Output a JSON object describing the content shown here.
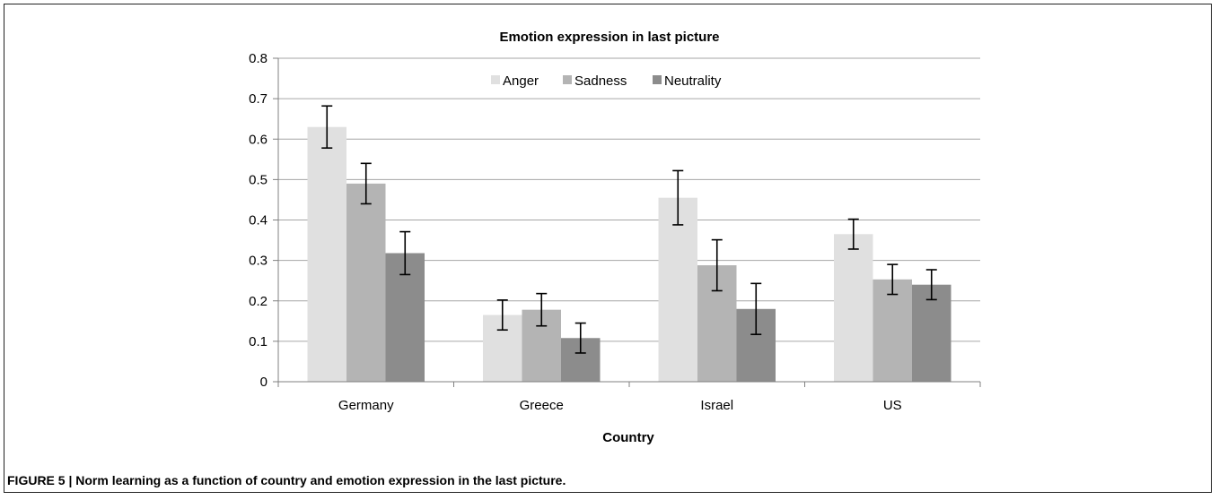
{
  "caption": {
    "label": "FIGURE 5 |",
    "text": "Norm learning as a function of country and emotion expression in the last picture."
  },
  "chart_data": {
    "type": "bar",
    "title": "Emotion expression in last picture",
    "xlabel": "Country",
    "ylabel": "",
    "categories": [
      "Germany",
      "Greece",
      "Israel",
      "US"
    ],
    "series": [
      {
        "name": "Anger",
        "color": "#e0e0e0",
        "values": [
          0.63,
          0.165,
          0.455,
          0.365
        ],
        "errors": [
          0.052,
          0.037,
          0.067,
          0.037
        ]
      },
      {
        "name": "Sadness",
        "color": "#b4b4b4",
        "values": [
          0.49,
          0.178,
          0.288,
          0.253
        ],
        "errors": [
          0.05,
          0.04,
          0.063,
          0.037
        ]
      },
      {
        "name": "Neutrality",
        "color": "#8c8c8c",
        "values": [
          0.318,
          0.108,
          0.18,
          0.24
        ],
        "errors": [
          0.053,
          0.037,
          0.063,
          0.037
        ]
      }
    ],
    "ylim": [
      0,
      0.8
    ],
    "yticks": [
      "0",
      "0.1",
      "0.2",
      "0.3",
      "0.4",
      "0.5",
      "0.6",
      "0.7",
      "0.8"
    ],
    "grid": true,
    "legend": "top"
  }
}
